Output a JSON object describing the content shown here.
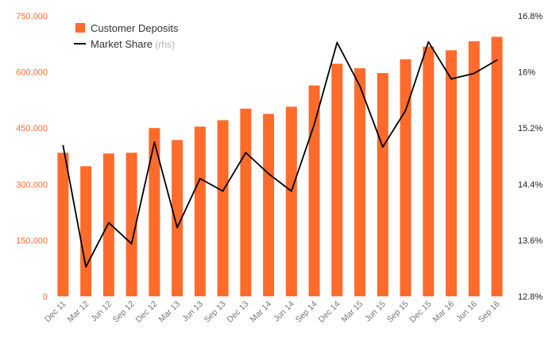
{
  "chart_data": {
    "type": "bar+line",
    "categories": [
      "Dec 11",
      "Mar 12",
      "Jun 12",
      "Sep 12",
      "Dec 12",
      "Mar 13",
      "Jun 13",
      "Sep 13",
      "Dec 13",
      "Mar 14",
      "Jun 14",
      "Sep 14",
      "Dec 14",
      "Mar 15",
      "Jun 15",
      "Sep 15",
      "Dec 15",
      "Mar 16",
      "Jun 16",
      "Sep 16"
    ],
    "series": [
      {
        "name": "Customer Deposits",
        "type": "bar",
        "axis": "left",
        "color": "#ff6b2b",
        "values": [
          384000,
          348000,
          382000,
          384000,
          450000,
          418000,
          454000,
          471000,
          502000,
          488000,
          507000,
          564000,
          622000,
          610000,
          597000,
          634000,
          668000,
          658000,
          682000,
          694000
        ]
      },
      {
        "name": "Market Share",
        "suffix": " (rhs)",
        "type": "line",
        "axis": "right",
        "color": "#000000",
        "values": [
          14.95,
          13.22,
          13.85,
          13.55,
          15.0,
          13.78,
          14.48,
          14.3,
          14.85,
          14.55,
          14.3,
          15.25,
          16.42,
          15.8,
          14.93,
          15.45,
          16.43,
          15.9,
          15.98,
          16.17
        ]
      }
    ],
    "y_left": {
      "min": 0,
      "max": 750000,
      "ticks": [
        0,
        150000,
        300000,
        450000,
        600000,
        750000
      ],
      "tick_labels": [
        "0",
        "150,000",
        "300,000",
        "450,000",
        "600,000",
        "750,000"
      ],
      "color": "#ff6b2b"
    },
    "y_right": {
      "min": 12.8,
      "max": 16.8,
      "ticks": [
        12.8,
        13.6,
        14.4,
        15.2,
        16.0,
        16.8
      ],
      "tick_labels": [
        "12.8%",
        "13.6%",
        "14.4%",
        "15.2%",
        "16%",
        "16.8%"
      ],
      "color": "#222222"
    },
    "legend_position": "top-left",
    "title": "",
    "xlabel": "",
    "ylabel": "",
    "grid": false
  }
}
